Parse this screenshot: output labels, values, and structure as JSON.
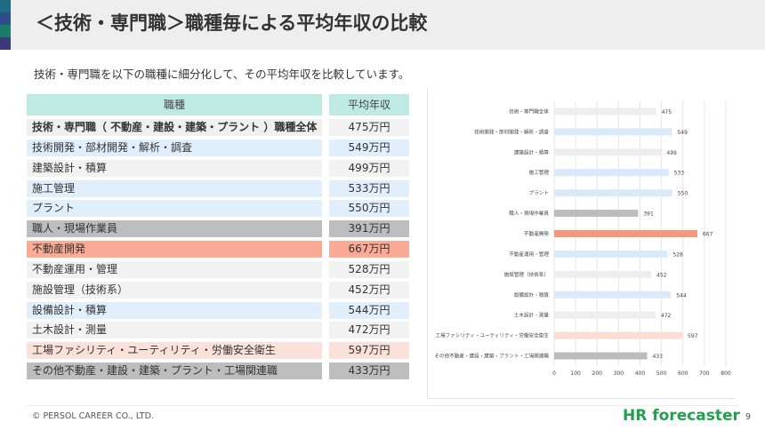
{
  "header": {
    "title": "＜技術・専門職＞職種毎による平均年収の比較"
  },
  "subtitle": "技術・専門職を以下の職種に細分化して、その平均年収を比較しています。",
  "table": {
    "col_job": "職種",
    "col_salary": "平均年収",
    "rows": [
      {
        "job": "技術・専門職（ 不動産・建設・建築・プラント ）職種全体",
        "salary": "475万円",
        "style": "total"
      },
      {
        "job": "技術開発・部材開発・解析・調査",
        "salary": "549万円",
        "style": "blue"
      },
      {
        "job": "建築設計・積算",
        "salary": "499万円",
        "style": "light"
      },
      {
        "job": "施工管理",
        "salary": "533万円",
        "style": "blue"
      },
      {
        "job": "プラント",
        "salary": "550万円",
        "style": "blue"
      },
      {
        "job": "職人・現場作業員",
        "salary": "391万円",
        "style": "gray"
      },
      {
        "job": "不動産開発",
        "salary": "667万円",
        "style": "orange"
      },
      {
        "job": "不動産運用・管理",
        "salary": "528万円",
        "style": "light"
      },
      {
        "job": "施設管理（技術系）",
        "salary": "452万円",
        "style": "light"
      },
      {
        "job": "設備設計・積算",
        "salary": "544万円",
        "style": "blue"
      },
      {
        "job": "土木設計・測量",
        "salary": "472万円",
        "style": "light"
      },
      {
        "job": "工場ファシリティ・ユーティリティ・労働安全衛生",
        "salary": "597万円",
        "style": "pink"
      },
      {
        "job": "その他不動産・建設・建築・プラント・工場関連職",
        "salary": "433万円",
        "style": "gray"
      }
    ]
  },
  "chart_data": {
    "type": "bar",
    "orientation": "horizontal",
    "categories": [
      "技術・専門職全体",
      "技術開発・部材開発・解析・調査",
      "建築設計・積算",
      "施工管理",
      "プラント",
      "職人・現場作業員",
      "不動産開発",
      "不動産運用・管理",
      "施設管理（技術系）",
      "設備設計・積算",
      "土木設計・測量",
      "工場ファシリティ・ユーティリティ・労働安全衛生",
      "その他不動産・建設・建築・プラント・工場関連職"
    ],
    "values": [
      475,
      549,
      499,
      533,
      550,
      391,
      667,
      528,
      452,
      544,
      472,
      597,
      433
    ],
    "bar_colors": [
      "#eeeeee",
      "#dbeafb",
      "#eeeeee",
      "#dbeafb",
      "#dbeafb",
      "#bdbdbd",
      "#f6977f",
      "#dbeafb",
      "#eeeeee",
      "#dbeafb",
      "#eeeeee",
      "#fcdcd3",
      "#bdbdbd"
    ],
    "xlim": [
      0,
      800
    ],
    "xticks": [
      0,
      100,
      200,
      300,
      400,
      500,
      600,
      700,
      800
    ],
    "grid": true,
    "title": "",
    "xlabel": "",
    "ylabel": ""
  },
  "footer": {
    "copyright": "© PERSOL CAREER CO., LTD.",
    "brand": "HR forecaster",
    "page": "9"
  }
}
